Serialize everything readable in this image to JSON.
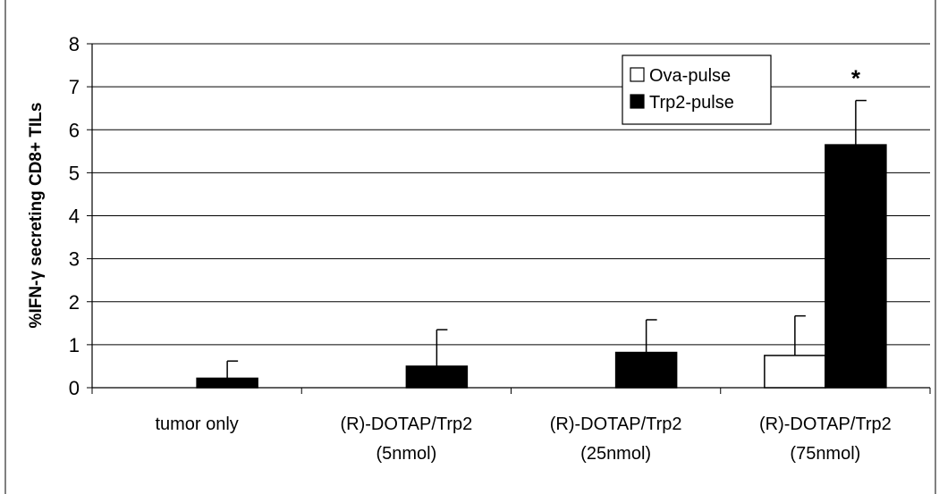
{
  "chart_data": {
    "type": "bar",
    "title": "",
    "ylabel": "%IFN-γ secreting CD8+ TILs",
    "xlabel": "",
    "ylim": [
      0,
      8
    ],
    "yticks": [
      0,
      1,
      2,
      3,
      4,
      5,
      6,
      7,
      8
    ],
    "grid": true,
    "legend_position": "top-right",
    "categories": [
      [
        "tumor only"
      ],
      [
        "(R)-DOTAP/Trp2",
        "(5nmol)"
      ],
      [
        "(R)-DOTAP/Trp2",
        "(25nmol)"
      ],
      [
        "(R)-DOTAP/Trp2",
        "(75nmol)"
      ]
    ],
    "series": [
      {
        "name": "Ova-pulse",
        "color": "#ffffff",
        "values": [
          0,
          0,
          0,
          0.75
        ],
        "errors": [
          0,
          0,
          0,
          0.92
        ]
      },
      {
        "name": "Trp2-pulse",
        "color": "#000000",
        "values": [
          0.22,
          0.5,
          0.82,
          5.65
        ],
        "errors": [
          0.4,
          0.85,
          0.76,
          1.03
        ]
      }
    ],
    "annotations": [
      {
        "text": "*",
        "category_index": 3,
        "series_index": 1
      }
    ]
  }
}
